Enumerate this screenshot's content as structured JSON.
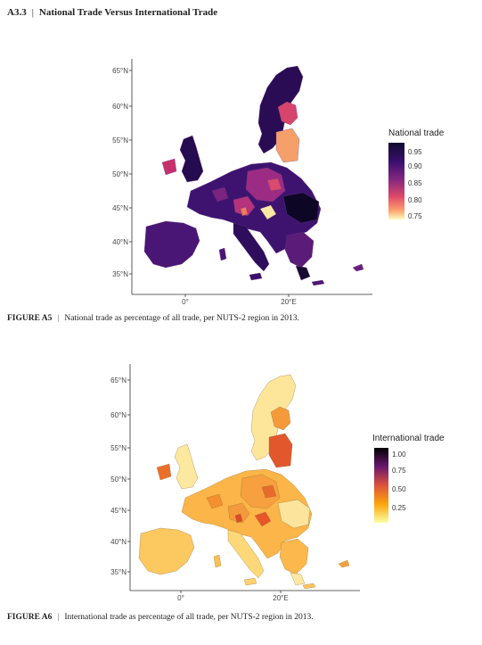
{
  "section": {
    "number": "A3.3",
    "title": "National Trade Versus International Trade"
  },
  "figures": [
    {
      "label": "FIGURE A5",
      "caption": "National trade as percentage of all trade, per NUTS-2 region in 2013.",
      "legend_title": "National trade",
      "legend_ticks": [
        "0.95",
        "0.90",
        "0.85",
        "0.80",
        "0.75"
      ],
      "y_ticks": [
        "65°N",
        "60°N",
        "55°N",
        "50°N",
        "45°N",
        "40°N",
        "35°N"
      ],
      "x_ticks": [
        "0°",
        "20°E"
      ],
      "palette": [
        "#120a30",
        "#3b0f6f",
        "#8c2981",
        "#de4968",
        "#fe9f6d",
        "#fcfdbf"
      ]
    },
    {
      "label": "FIGURE A6",
      "caption": "International trade as percentage of all trade, per NUTS-2 region in 2013.",
      "legend_title": "International trade",
      "legend_ticks": [
        "1.00",
        "0.75",
        "0.50",
        "0.25"
      ],
      "y_ticks": [
        "65°N",
        "60°N",
        "55°N",
        "50°N",
        "45°N",
        "40°N",
        "35°N"
      ],
      "x_ticks": [
        "0°",
        "20°E"
      ],
      "palette": [
        "#000004",
        "#6a176e",
        "#dd513a",
        "#fca50a",
        "#fcffa4"
      ]
    }
  ],
  "chart_data": [
    {
      "type": "heatmap",
      "title": "National trade",
      "xlabel": "",
      "ylabel": "",
      "xticks": [
        "0°",
        "20°E"
      ],
      "yticks": [
        "65°N",
        "60°N",
        "55°N",
        "50°N",
        "45°N",
        "40°N",
        "35°N"
      ],
      "color_range": [
        0.75,
        0.97
      ],
      "legend": "right"
    },
    {
      "type": "heatmap",
      "title": "International trade",
      "xlabel": "",
      "ylabel": "",
      "xticks": [
        "0°",
        "20°E"
      ],
      "yticks": [
        "65°N",
        "60°N",
        "55°N",
        "50°N",
        "45°N",
        "40°N",
        "35°N"
      ],
      "color_range": [
        0.0,
        1.0
      ],
      "legend": "right"
    }
  ]
}
